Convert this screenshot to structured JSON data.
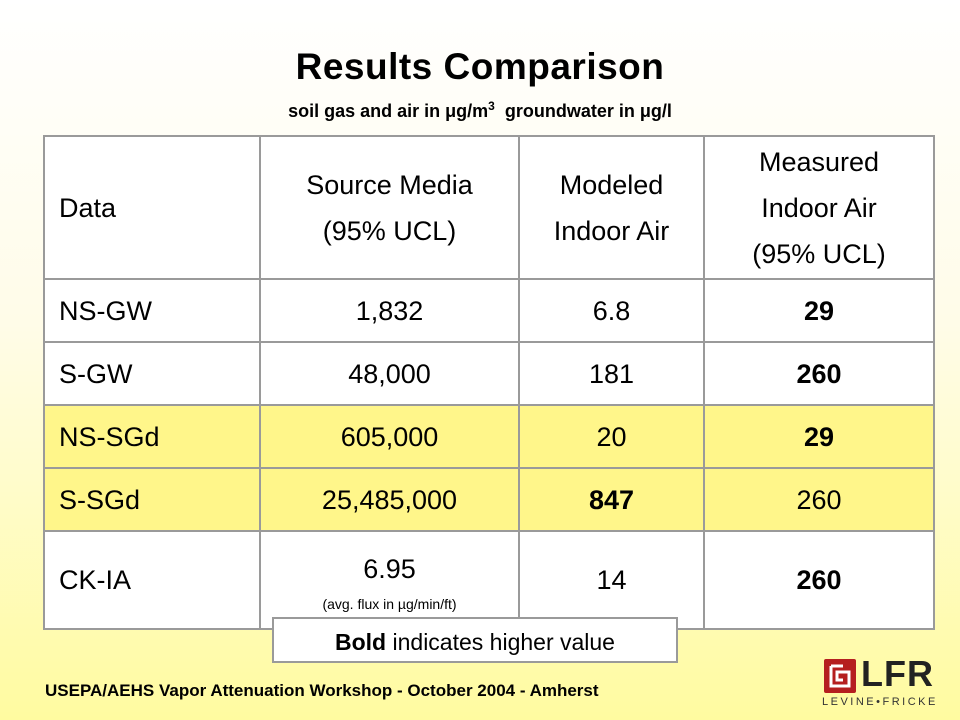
{
  "title": "Results Comparison",
  "subtitle": {
    "part1": "soil gas and air in ",
    "mu1": "μ",
    "unit1": "g/m",
    "unit1_sup": "3",
    "gap": "  groundwater in ",
    "mu2": "μ",
    "unit2": "g/l"
  },
  "table": {
    "headers": [
      [
        "Data"
      ],
      [
        "Source Media",
        "(95% UCL)"
      ],
      [
        "Modeled",
        "Indoor Air"
      ],
      [
        "Measured",
        "Indoor Air",
        "(95% UCL)"
      ]
    ],
    "rows": [
      {
        "data": "NS-GW",
        "source": "1,832",
        "modeled": "6.8",
        "measured": "29"
      },
      {
        "data": "S-GW",
        "source": "48,000",
        "modeled": "181",
        "measured": "260"
      },
      {
        "data": "NS-SGd",
        "source": "605,000",
        "modeled": "20",
        "measured": "29"
      },
      {
        "data": "S-SGd",
        "source": "25,485,000",
        "modeled": "847",
        "measured": "260"
      },
      {
        "data": "CK-IA",
        "source": "6.95",
        "source_note": "(avg. flux in µg/min/ft)",
        "modeled": "14",
        "measured": "260"
      }
    ]
  },
  "legend": {
    "bold_word": "Bold",
    "rest": " indicates higher value"
  },
  "footer": "USEPA/AEHS Vapor Attenuation Workshop - October 2004 - Amherst",
  "logo": {
    "text": "LFR",
    "subtext": "LEVINE•FRICKE",
    "color": "#b51f1f"
  },
  "colors": {
    "highlight_row": "#fff68a",
    "border": "#9a9a9a"
  }
}
